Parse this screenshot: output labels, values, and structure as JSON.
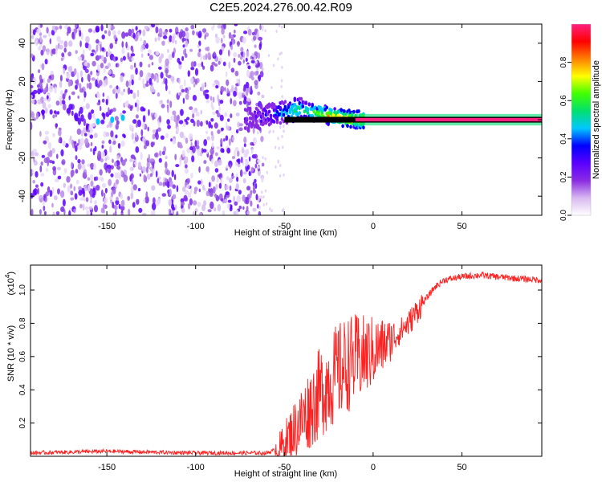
{
  "title": "C2E5.2024.276.00.42.R09",
  "chart_data": [
    {
      "type": "heatmap",
      "xlabel": "Height of straight line (km)",
      "ylabel": "Frequency (Hz)",
      "xlim": [
        -193,
        95
      ],
      "ylim": [
        -50,
        50
      ],
      "xticks": [
        -150,
        -100,
        -50,
        0,
        50
      ],
      "yticks": [
        -40,
        -20,
        0,
        20,
        40
      ],
      "colorbar": {
        "label": "Normalized spectral amplitude",
        "range": [
          0,
          1
        ],
        "ticks": [
          "0.0",
          "0.2",
          "0.4",
          "0.6",
          "0.8"
        ],
        "colors": [
          "#ffffff",
          "#d8b8f0",
          "#8a2be2",
          "#5a00ff",
          "#0000ff",
          "#00c8ff",
          "#00e070",
          "#40ff00",
          "#ffff00",
          "#ff8000",
          "#ff0000",
          "#ff2080"
        ]
      },
      "ridge": {
        "x": [
          -70,
          -60,
          -50,
          -45,
          -40,
          -35,
          -30,
          -25,
          -20,
          -15,
          -10,
          -5,
          0,
          10,
          20,
          50,
          95
        ],
        "y": [
          0,
          2,
          4,
          5,
          5,
          4,
          3.5,
          2,
          1,
          0.5,
          0,
          0,
          0,
          0,
          0,
          0,
          0
        ],
        "amplitude": [
          0.25,
          0.3,
          0.45,
          0.55,
          0.55,
          0.6,
          0.65,
          0.75,
          0.8,
          0.8,
          0.8,
          0.85,
          0.9,
          0.9,
          0.9,
          0.9,
          0.9
        ]
      },
      "noise_region_x": [
        -193,
        -65
      ]
    },
    {
      "type": "line",
      "xlabel": "Height of straight line (km)",
      "ylabel": "SNR (10 * v/v)",
      "yscale_label": "(x10",
      "yscale_exp": "4",
      "xlim": [
        -193,
        95
      ],
      "ylim": [
        0,
        1.15
      ],
      "xticks": [
        -150,
        -100,
        -50,
        0,
        50
      ],
      "yticks": [
        "0.2",
        "0.4",
        "0.6",
        "0.8",
        "1.0"
      ],
      "series": [
        {
          "color": "#ff2020",
          "x": [
            -193,
            -150,
            -100,
            -60,
            -52,
            -45,
            -40,
            -35,
            -30,
            -25,
            -20,
            -15,
            -10,
            -5,
            0,
            5,
            10,
            15,
            20,
            25,
            30,
            35,
            40,
            50,
            60,
            70,
            80,
            95
          ],
          "y": [
            0.02,
            0.03,
            0.02,
            0.02,
            0.05,
            0.15,
            0.22,
            0.3,
            0.38,
            0.45,
            0.5,
            0.55,
            0.58,
            0.6,
            0.63,
            0.66,
            0.7,
            0.75,
            0.8,
            0.88,
            0.95,
            1.02,
            1.06,
            1.08,
            1.09,
            1.08,
            1.07,
            1.06
          ]
        }
      ]
    }
  ]
}
